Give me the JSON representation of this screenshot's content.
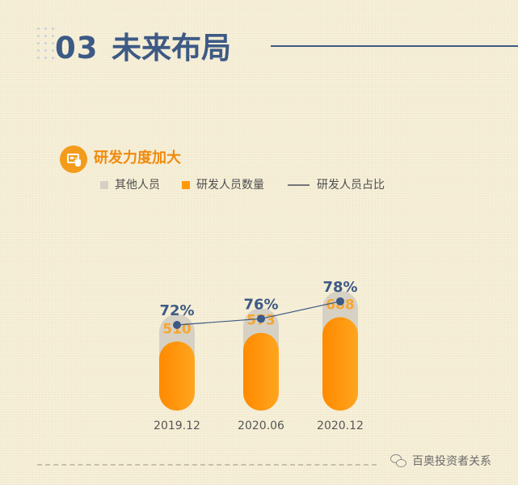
{
  "header": {
    "section_number": "03",
    "section_title": "未来布局"
  },
  "subtitle": "研发力度加大",
  "legend": {
    "other": "其他人员",
    "rd_count": "研发人员数量",
    "rd_ratio": "研发人员占比"
  },
  "colors": {
    "title_blue": "#3d5a85",
    "accent_orange": "#f39c1c",
    "bar_orange": "#ff9a05",
    "bar_other_gray": "#d6d1c4",
    "value_label": "#f6a630",
    "line_color": "#3d5a85"
  },
  "chart_data": {
    "type": "bar",
    "categories": [
      "2019.12",
      "2020.06",
      "2020.12"
    ],
    "series": [
      {
        "name": "研发人员数量",
        "values": [
          510,
          573,
          688
        ],
        "labels": [
          "510",
          "573",
          "688"
        ]
      },
      {
        "name": "研发人员占比",
        "type": "line",
        "values": [
          72,
          76,
          78
        ],
        "labels": [
          "72%",
          "76%",
          "78%"
        ]
      },
      {
        "name": "其他人员",
        "type": "stacked-remainder"
      }
    ]
  },
  "footer": {
    "source": "百奥投资者关系"
  },
  "icons": {
    "subtitle_icon": "document-hand-icon",
    "footer_icon": "wechat-icon"
  }
}
